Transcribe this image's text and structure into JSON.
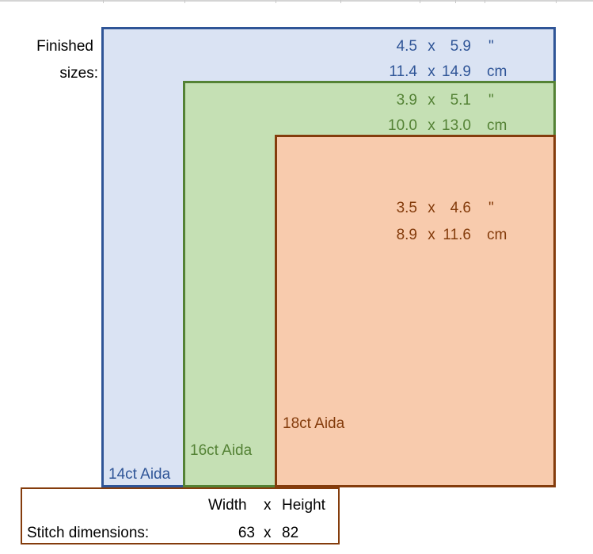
{
  "finished_label_line1": "Finished",
  "finished_label_line2": "sizes:",
  "boxes": [
    {
      "fabric": "14ct Aida",
      "color": "#2f5597",
      "fill": "#dae3f3",
      "inches": {
        "w": "4.5",
        "x": "x",
        "h": "5.9",
        "unit": "\""
      },
      "cm": {
        "w": "11.4",
        "x": "x",
        "h": "14.9",
        "unit": "cm"
      }
    },
    {
      "fabric": "16ct Aida",
      "color": "#548235",
      "fill": "#c5e0b4",
      "inches": {
        "w": "3.9",
        "x": "x",
        "h": "5.1",
        "unit": "\""
      },
      "cm": {
        "w": "10.0",
        "x": "x",
        "h": "13.0",
        "unit": "cm"
      }
    },
    {
      "fabric": "18ct Aida",
      "color": "#843c0c",
      "fill": "#f8cbad",
      "inches": {
        "w": "3.5",
        "x": "x",
        "h": "4.6",
        "unit": "\""
      },
      "cm": {
        "w": "8.9",
        "x": "x",
        "h": "11.6",
        "unit": "cm"
      }
    }
  ],
  "stitch": {
    "width_header": "Width",
    "x_header": "x",
    "height_header": "Height",
    "row_label": "Stitch dimensions:",
    "width": "63",
    "x": "x",
    "height": "82"
  }
}
